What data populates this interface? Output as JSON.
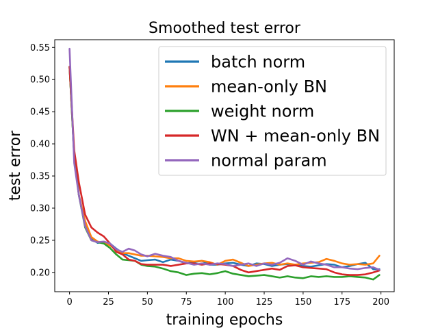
{
  "chart_data": {
    "type": "line",
    "title": "Smoothed test error",
    "xlabel": "training epochs",
    "ylabel": "test error",
    "xlim": [
      -9.5,
      208.5
    ],
    "ylim": [
      0.17,
      0.562
    ],
    "xticks": [
      0,
      25,
      50,
      75,
      100,
      125,
      150,
      175,
      200
    ],
    "yticks": [
      0.2,
      0.25,
      0.3,
      0.35,
      0.4,
      0.45,
      0.5,
      0.55
    ],
    "ytick_labels": [
      "0.20",
      "0.25",
      "0.30",
      "0.35",
      "0.40",
      "0.45",
      "0.50",
      "0.55"
    ],
    "legend_position": "top-right",
    "grid": false,
    "series": [
      {
        "name": "batch norm",
        "color": "#1f77b4",
        "points": [
          [
            0,
            0.52
          ],
          [
            3,
            0.38
          ],
          [
            6,
            0.32
          ],
          [
            10,
            0.275
          ],
          [
            14,
            0.252
          ],
          [
            18,
            0.246
          ],
          [
            22,
            0.247
          ],
          [
            26,
            0.245
          ],
          [
            30,
            0.237
          ],
          [
            34,
            0.23
          ],
          [
            38,
            0.226
          ],
          [
            42,
            0.222
          ],
          [
            46,
            0.218
          ],
          [
            50,
            0.219
          ],
          [
            55,
            0.22
          ],
          [
            60,
            0.216
          ],
          [
            65,
            0.22
          ],
          [
            70,
            0.218
          ],
          [
            75,
            0.214
          ],
          [
            80,
            0.216
          ],
          [
            85,
            0.218
          ],
          [
            90,
            0.212
          ],
          [
            95,
            0.212
          ],
          [
            100,
            0.214
          ],
          [
            105,
            0.215
          ],
          [
            110,
            0.212
          ],
          [
            115,
            0.21
          ],
          [
            120,
            0.214
          ],
          [
            125,
            0.213
          ],
          [
            130,
            0.21
          ],
          [
            135,
            0.212
          ],
          [
            140,
            0.213
          ],
          [
            145,
            0.212
          ],
          [
            150,
            0.21
          ],
          [
            155,
            0.209
          ],
          [
            160,
            0.211
          ],
          [
            165,
            0.213
          ],
          [
            170,
            0.212
          ],
          [
            175,
            0.208
          ],
          [
            180,
            0.21
          ],
          [
            185,
            0.213
          ],
          [
            190,
            0.215
          ],
          [
            195,
            0.205
          ],
          [
            199,
            0.205
          ]
        ]
      },
      {
        "name": "mean-only BN",
        "color": "#ff7f0e",
        "points": [
          [
            0,
            0.52
          ],
          [
            3,
            0.38
          ],
          [
            6,
            0.32
          ],
          [
            10,
            0.28
          ],
          [
            14,
            0.255
          ],
          [
            18,
            0.248
          ],
          [
            22,
            0.246
          ],
          [
            26,
            0.242
          ],
          [
            30,
            0.235
          ],
          [
            34,
            0.23
          ],
          [
            38,
            0.23
          ],
          [
            42,
            0.228
          ],
          [
            46,
            0.226
          ],
          [
            50,
            0.226
          ],
          [
            55,
            0.225
          ],
          [
            60,
            0.224
          ],
          [
            65,
            0.222
          ],
          [
            70,
            0.222
          ],
          [
            75,
            0.218
          ],
          [
            80,
            0.217
          ],
          [
            85,
            0.218
          ],
          [
            90,
            0.216
          ],
          [
            95,
            0.212
          ],
          [
            100,
            0.218
          ],
          [
            105,
            0.22
          ],
          [
            110,
            0.215
          ],
          [
            115,
            0.21
          ],
          [
            120,
            0.212
          ],
          [
            125,
            0.214
          ],
          [
            130,
            0.215
          ],
          [
            135,
            0.212
          ],
          [
            140,
            0.214
          ],
          [
            145,
            0.212
          ],
          [
            150,
            0.214
          ],
          [
            155,
            0.215
          ],
          [
            160,
            0.216
          ],
          [
            165,
            0.221
          ],
          [
            170,
            0.218
          ],
          [
            175,
            0.214
          ],
          [
            180,
            0.212
          ],
          [
            185,
            0.213
          ],
          [
            190,
            0.212
          ],
          [
            195,
            0.214
          ],
          [
            199,
            0.226
          ]
        ]
      },
      {
        "name": "weight norm",
        "color": "#2ca02c",
        "points": [
          [
            0,
            0.52
          ],
          [
            3,
            0.38
          ],
          [
            6,
            0.32
          ],
          [
            10,
            0.27
          ],
          [
            14,
            0.25
          ],
          [
            18,
            0.247
          ],
          [
            22,
            0.245
          ],
          [
            26,
            0.238
          ],
          [
            30,
            0.228
          ],
          [
            34,
            0.22
          ],
          [
            38,
            0.219
          ],
          [
            42,
            0.218
          ],
          [
            46,
            0.212
          ],
          [
            50,
            0.21
          ],
          [
            55,
            0.209
          ],
          [
            60,
            0.206
          ],
          [
            65,
            0.202
          ],
          [
            70,
            0.2
          ],
          [
            75,
            0.196
          ],
          [
            80,
            0.198
          ],
          [
            85,
            0.199
          ],
          [
            90,
            0.197
          ],
          [
            95,
            0.199
          ],
          [
            100,
            0.202
          ],
          [
            105,
            0.198
          ],
          [
            110,
            0.196
          ],
          [
            115,
            0.194
          ],
          [
            120,
            0.195
          ],
          [
            125,
            0.196
          ],
          [
            130,
            0.194
          ],
          [
            135,
            0.192
          ],
          [
            140,
            0.194
          ],
          [
            145,
            0.192
          ],
          [
            150,
            0.191
          ],
          [
            155,
            0.194
          ],
          [
            160,
            0.193
          ],
          [
            165,
            0.194
          ],
          [
            170,
            0.193
          ],
          [
            175,
            0.193
          ],
          [
            180,
            0.194
          ],
          [
            185,
            0.193
          ],
          [
            190,
            0.192
          ],
          [
            195,
            0.189
          ],
          [
            199,
            0.196
          ]
        ]
      },
      {
        "name": "WN + mean-only BN",
        "color": "#d62728",
        "points": [
          [
            0,
            0.52
          ],
          [
            3,
            0.39
          ],
          [
            6,
            0.34
          ],
          [
            10,
            0.29
          ],
          [
            14,
            0.27
          ],
          [
            18,
            0.262
          ],
          [
            22,
            0.256
          ],
          [
            26,
            0.245
          ],
          [
            30,
            0.232
          ],
          [
            34,
            0.228
          ],
          [
            38,
            0.22
          ],
          [
            42,
            0.218
          ],
          [
            46,
            0.213
          ],
          [
            50,
            0.212
          ],
          [
            55,
            0.212
          ],
          [
            60,
            0.212
          ],
          [
            65,
            0.21
          ],
          [
            70,
            0.212
          ],
          [
            75,
            0.214
          ],
          [
            80,
            0.214
          ],
          [
            85,
            0.212
          ],
          [
            90,
            0.214
          ],
          [
            95,
            0.213
          ],
          [
            100,
            0.212
          ],
          [
            105,
            0.21
          ],
          [
            110,
            0.204
          ],
          [
            115,
            0.2
          ],
          [
            120,
            0.202
          ],
          [
            125,
            0.204
          ],
          [
            130,
            0.206
          ],
          [
            135,
            0.204
          ],
          [
            140,
            0.21
          ],
          [
            145,
            0.211
          ],
          [
            150,
            0.208
          ],
          [
            155,
            0.207
          ],
          [
            160,
            0.206
          ],
          [
            165,
            0.205
          ],
          [
            170,
            0.2
          ],
          [
            175,
            0.197
          ],
          [
            180,
            0.196
          ],
          [
            185,
            0.196
          ],
          [
            190,
            0.197
          ],
          [
            195,
            0.2
          ],
          [
            199,
            0.203
          ]
        ]
      },
      {
        "name": "normal param",
        "color": "#9467bd",
        "points": [
          [
            0,
            0.548
          ],
          [
            3,
            0.37
          ],
          [
            6,
            0.32
          ],
          [
            10,
            0.272
          ],
          [
            14,
            0.25
          ],
          [
            18,
            0.247
          ],
          [
            22,
            0.248
          ],
          [
            26,
            0.245
          ],
          [
            30,
            0.236
          ],
          [
            34,
            0.232
          ],
          [
            38,
            0.237
          ],
          [
            42,
            0.234
          ],
          [
            46,
            0.228
          ],
          [
            50,
            0.225
          ],
          [
            55,
            0.229
          ],
          [
            60,
            0.226
          ],
          [
            65,
            0.224
          ],
          [
            70,
            0.218
          ],
          [
            75,
            0.215
          ],
          [
            80,
            0.212
          ],
          [
            85,
            0.214
          ],
          [
            90,
            0.212
          ],
          [
            95,
            0.214
          ],
          [
            100,
            0.213
          ],
          [
            105,
            0.21
          ],
          [
            110,
            0.212
          ],
          [
            115,
            0.214
          ],
          [
            120,
            0.21
          ],
          [
            125,
            0.214
          ],
          [
            130,
            0.212
          ],
          [
            135,
            0.215
          ],
          [
            140,
            0.222
          ],
          [
            145,
            0.218
          ],
          [
            150,
            0.212
          ],
          [
            155,
            0.217
          ],
          [
            160,
            0.214
          ],
          [
            165,
            0.212
          ],
          [
            170,
            0.208
          ],
          [
            175,
            0.208
          ],
          [
            180,
            0.206
          ],
          [
            185,
            0.205
          ],
          [
            190,
            0.207
          ],
          [
            195,
            0.208
          ],
          [
            199,
            0.204
          ]
        ]
      }
    ]
  }
}
